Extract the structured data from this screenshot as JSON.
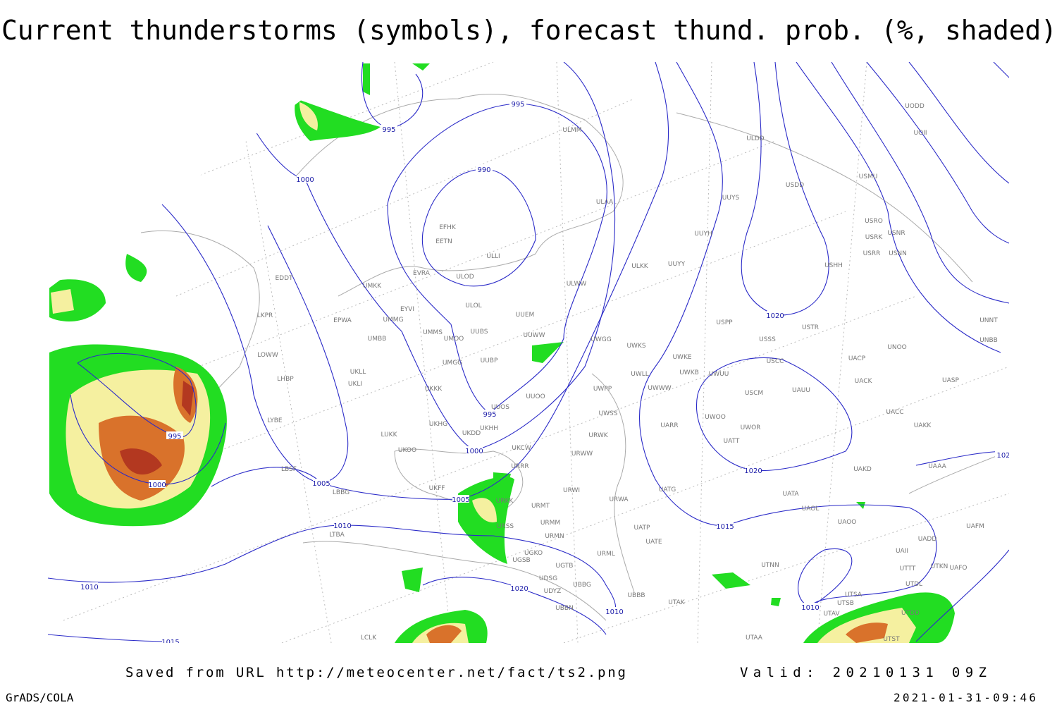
{
  "title": "Current thunderstorms (symbols), forecast thund. prob. (%, shaded)",
  "footer": {
    "source": "Saved from URL http://meteocenter.net/fact/ts2.png",
    "valid": "Valid: 20210131 09Z",
    "software": "GrADS/COLA",
    "timestamp": "2021-01-31-09:46"
  },
  "isobar_labels": [
    "995",
    "995",
    "1000",
    "990",
    "995",
    "1000",
    "995",
    "1000",
    "1005",
    "1005",
    "1010",
    "1010",
    "1020",
    "1010",
    "1020",
    "1020",
    "1015",
    "1010",
    "1015",
    "102"
  ],
  "stations": [
    "ULMM",
    "ULDD",
    "UODD",
    "UOII",
    "USDD",
    "USMU",
    "ULAA",
    "UUYS",
    "USRO",
    "USRK",
    "USNR",
    "USRR",
    "USNN",
    "UUYH",
    "EFHK",
    "EETN",
    "ULLI",
    "EVRA",
    "ULOD",
    "ULKK",
    "UUYY",
    "USHH",
    "EDDT",
    "UMKK",
    "ULWW",
    "ULOL",
    "EYVI",
    "UUEM",
    "LKPR",
    "EPWA",
    "UMMG",
    "USPP",
    "USTR",
    "UNNT",
    "UNBB",
    "UMMS",
    "UMOO",
    "UUBS",
    "UUWW",
    "UMBB",
    "UWGG",
    "UWKS",
    "USSS",
    "UNOO",
    "LOWW",
    "UWKE",
    "UACP",
    "USCC",
    "UMGG",
    "UUBP",
    "UKLL",
    "UWKB",
    "UWUU",
    "LHBP",
    "UKLI",
    "UWLL",
    "UWWW",
    "UACK",
    "UASP",
    "UKKK",
    "UUOO",
    "UWPP",
    "USCM",
    "UAUU",
    "UUOS",
    "UWSS",
    "UACC",
    "UWOO",
    "LYBE",
    "UKHH",
    "UKDD",
    "UKHG",
    "UARR",
    "UWOR",
    "UAKK",
    "LUKK",
    "URWK",
    "UATT",
    "UKOO",
    "UKCW",
    "URWW",
    "LBSF",
    "URRR",
    "UAKD",
    "UAAA",
    "UKFF",
    "URWI",
    "UATG",
    "LBBG",
    "UATA",
    "URKK",
    "URWA",
    "URMT",
    "UAOL",
    "UAOO",
    "UAFM",
    "URSS",
    "URMM",
    "UATP",
    "LTBA",
    "URMN",
    "UATE",
    "UADD",
    "UAII",
    "URML",
    "UGKO",
    "UGSB",
    "UTNN",
    "UTTT",
    "UTKN",
    "UAFO",
    "UGTB",
    "UDSG",
    "UTDL",
    "UBBG",
    "UDYZ",
    "UTSA",
    "UBBB",
    "UTAK",
    "UTSB",
    "UBBN",
    "UTDD",
    "UTAV",
    "LCLK",
    "UTAA",
    "UTST"
  ]
}
